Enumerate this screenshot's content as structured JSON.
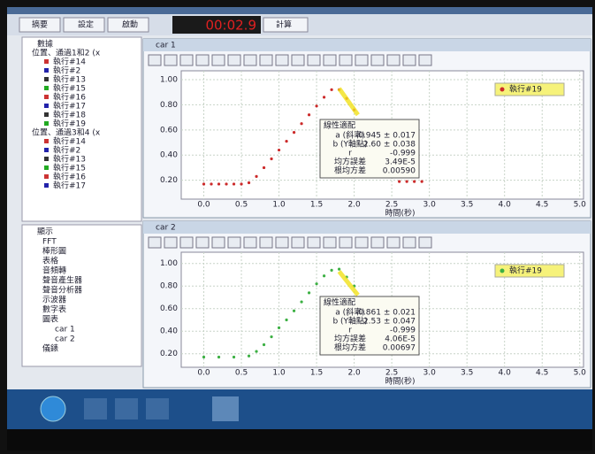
{
  "toolbar": {
    "summary": "摘要",
    "setup": "設定",
    "start": "啟動",
    "timer": "00:02.9",
    "calculate": "計算"
  },
  "data_tree": {
    "title": "數據",
    "groups": [
      {
        "label": "位置、通過1和2 (x",
        "runs": [
          "執行#14",
          "執行#2",
          "執行#13",
          "執行#15",
          "執行#16",
          "執行#17",
          "執行#18",
          "執行#19"
        ]
      },
      {
        "label": "位置、通過3和4 (x",
        "runs": [
          "執行#14",
          "執行#2",
          "執行#13",
          "執行#15",
          "執行#16",
          "執行#17"
        ]
      }
    ]
  },
  "display_tree": {
    "title": "顯示",
    "items": [
      "FFT",
      "棒形圖",
      "表格",
      "音頻轉",
      "聲音產生器",
      "聲音分析器",
      "示波器",
      "數字表",
      "圖表",
      "car 1",
      "car 2",
      "儀錶"
    ]
  },
  "charts": [
    {
      "type": "scatter",
      "window_title": "car 1",
      "legend": "執行#19",
      "color": "#cc2a2a",
      "x": [
        0.0,
        0.1,
        0.2,
        0.3,
        0.4,
        0.5,
        0.6,
        0.7,
        0.8,
        0.9,
        1.0,
        1.1,
        1.2,
        1.3,
        1.4,
        1.5,
        1.6,
        1.7,
        1.8,
        1.9,
        2.0,
        2.6,
        2.7,
        2.8,
        2.9
      ],
      "y": [
        0.17,
        0.17,
        0.17,
        0.17,
        0.17,
        0.17,
        0.18,
        0.23,
        0.3,
        0.37,
        0.44,
        0.51,
        0.58,
        0.65,
        0.72,
        0.79,
        0.86,
        0.92,
        0.92,
        0.85,
        0.76,
        0.19,
        0.19,
        0.19,
        0.19
      ],
      "xlim": [
        -0.3,
        5.05
      ],
      "ylim": [
        0.05,
        1.07
      ],
      "xticks": [
        {
          "value": 0,
          "label": "0.0"
        },
        0.5,
        {
          "value": 1,
          "label": "1.0"
        },
        1.5,
        {
          "value": 2,
          "label": "2.0"
        },
        2.5,
        {
          "value": 3,
          "label": "3.0"
        },
        3.5,
        {
          "value": 4,
          "label": "4.0"
        },
        4.5,
        {
          "value": 5,
          "label": "5.0"
        }
      ],
      "yticks": [
        {
          "value": 0.2,
          "label": "0.20"
        },
        {
          "value": 0.4,
          "label": "0.40"
        },
        {
          "value": 0.6,
          "label": "0.60"
        },
        {
          "value": 0.8,
          "label": "0.80"
        },
        {
          "value": 1,
          "label": "1.00"
        }
      ],
      "x_label": "時間(秒)",
      "fit": {
        "title": "線性適配",
        "rows": [
          [
            "a (斜率)",
            "-0.945 ± 0.017"
          ],
          [
            "b (Y軸點)",
            "2.60 ± 0.038"
          ],
          [
            "r",
            "-0.999"
          ],
          [
            "均方誤差",
            "3.49E-5"
          ],
          [
            "根均方差",
            "0.00590"
          ]
        ]
      }
    },
    {
      "type": "scatter",
      "window_title": "car 2",
      "legend": "執行#19",
      "color": "#3cb043",
      "x": [
        0.0,
        0.2,
        0.4,
        0.6,
        0.7,
        0.8,
        0.9,
        1.0,
        1.1,
        1.2,
        1.3,
        1.4,
        1.5,
        1.6,
        1.7,
        1.8,
        1.9,
        2.0
      ],
      "y": [
        0.17,
        0.17,
        0.17,
        0.18,
        0.22,
        0.28,
        0.35,
        0.43,
        0.5,
        0.58,
        0.66,
        0.74,
        0.82,
        0.89,
        0.94,
        0.95,
        0.88,
        0.8
      ],
      "xlim": [
        -0.3,
        5.05
      ],
      "ylim": [
        0.08,
        1.1
      ],
      "xticks": [
        {
          "value": 0,
          "label": "0.0"
        },
        0.5,
        {
          "value": 1,
          "label": "1.0"
        },
        1.5,
        {
          "value": 2,
          "label": "2.0"
        },
        2.5,
        {
          "value": 3,
          "label": "3.0"
        },
        3.5,
        {
          "value": 4,
          "label": "4.0"
        },
        4.5,
        {
          "value": 5,
          "label": "5.0"
        }
      ],
      "yticks": [
        {
          "value": 0.2,
          "label": "0.20"
        },
        {
          "value": 0.4,
          "label": "0.40"
        },
        {
          "value": 0.6,
          "label": "0.60"
        },
        {
          "value": 0.8,
          "label": "0.80"
        },
        {
          "value": 1,
          "label": "1.00"
        }
      ],
      "x_label": "時間(秒)",
      "fit": {
        "title": "線性適配",
        "rows": [
          [
            "a (斜率)",
            "-0.861 ± 0.021"
          ],
          [
            "b (Y軸點)",
            "2.53 ± 0.047"
          ],
          [
            "r",
            "-0.999"
          ],
          [
            "均方誤差",
            "4.06E-5"
          ],
          [
            "根均方差",
            "0.00697"
          ]
        ]
      }
    }
  ]
}
